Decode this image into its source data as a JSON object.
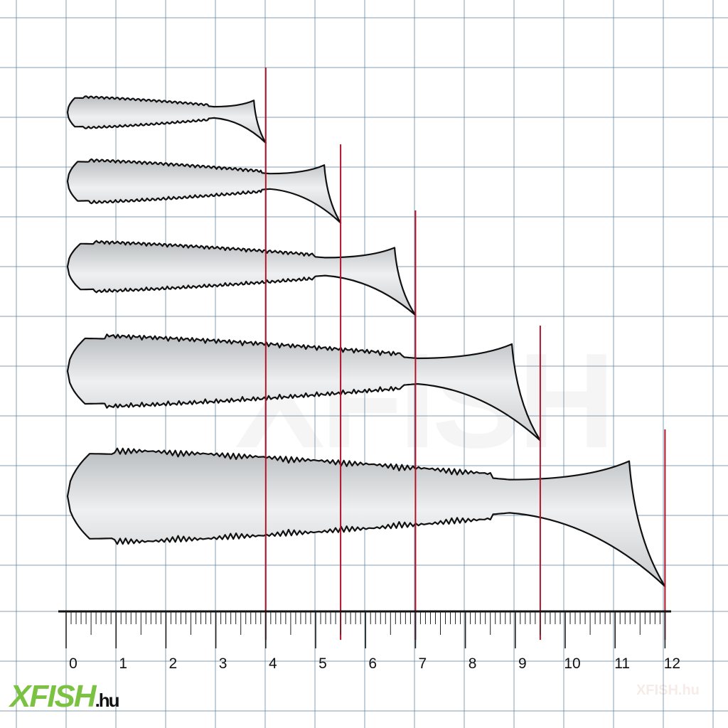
{
  "ruler": {
    "unit": "inch",
    "labels": [
      "0",
      "1",
      "2",
      "3",
      "4",
      "5",
      "6",
      "7",
      "8",
      "9",
      "10",
      "11",
      "12"
    ],
    "subdivisions": 10
  },
  "lures": [
    {
      "length_in": 4.0
    },
    {
      "length_in": 5.5
    },
    {
      "length_in": 7.0
    },
    {
      "length_in": 9.5
    },
    {
      "length_in": 12.0
    }
  ],
  "colors": {
    "grid": "#5b7f9a",
    "marker": "#b0142a",
    "brand": "#7cc242",
    "lure_outline": "#111111"
  },
  "logo": {
    "brand": "XFISH",
    "tld": ".hu"
  },
  "watermark": "XFISH",
  "watermark_small": "XFISH.hu"
}
